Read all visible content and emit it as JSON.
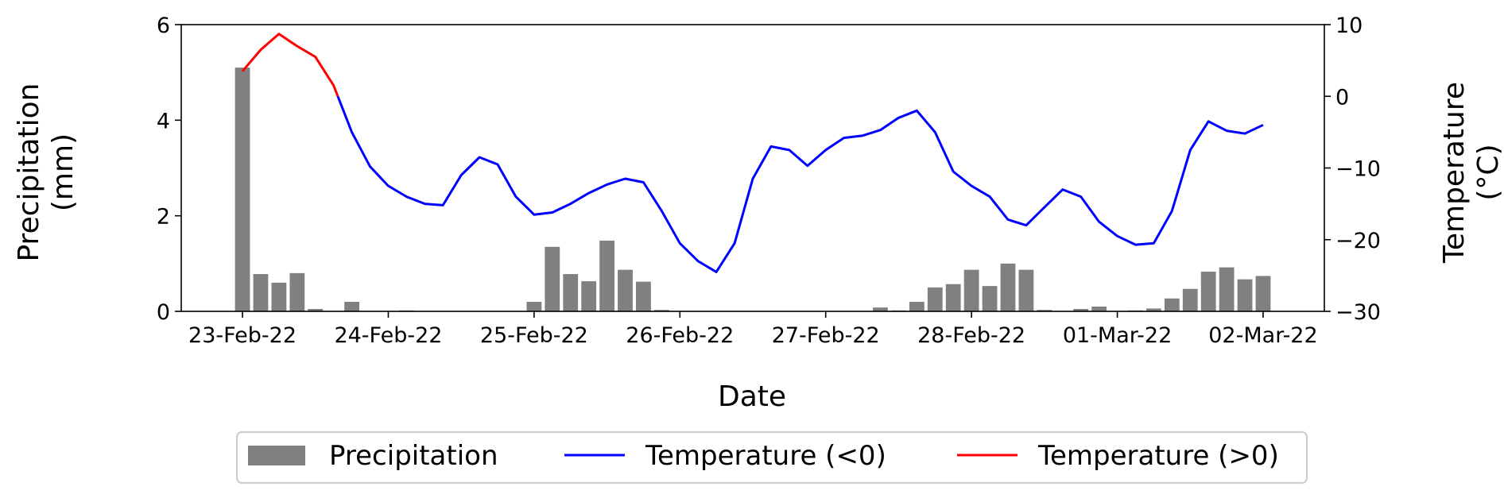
{
  "chart_data": {
    "type": "bar+line",
    "title": "",
    "xlabel": "Date",
    "ylabel_left_lines": [
      "Precipitation",
      "(mm)"
    ],
    "ylabel_right_lines": [
      "Temperature",
      "(°C)"
    ],
    "x_ticks": [
      {
        "day": 0,
        "label": "23-Feb-22"
      },
      {
        "day": 1,
        "label": "24-Feb-22"
      },
      {
        "day": 2,
        "label": "25-Feb-22"
      },
      {
        "day": 3,
        "label": "26-Feb-22"
      },
      {
        "day": 4,
        "label": "27-Feb-22"
      },
      {
        "day": 5,
        "label": "28-Feb-22"
      },
      {
        "day": 6,
        "label": "01-Mar-22"
      },
      {
        "day": 7,
        "label": "02-Mar-22"
      }
    ],
    "xlim": [
      -0.42,
      7.42
    ],
    "ylim_left": [
      0,
      6
    ],
    "ylim_right": [
      -30,
      10
    ],
    "yticks_left": [
      0,
      2,
      4,
      6
    ],
    "yticks_right": [
      -30,
      -20,
      -10,
      0,
      10
    ],
    "ytick_labels_left": [
      "0",
      "2",
      "4",
      "6"
    ],
    "ytick_labels_right": [
      "−30",
      "−20",
      "−10",
      "0",
      "10"
    ],
    "bar_color": "#808080",
    "neg_color": "#0000ff",
    "pos_color": "#ff0000",
    "precipitation": {
      "name": "Precipitation",
      "x": [
        0,
        0.125,
        0.25,
        0.375,
        0.5,
        0.75,
        1.125,
        2.0,
        2.125,
        2.25,
        2.375,
        2.5,
        2.625,
        2.75,
        2.875,
        4.375,
        4.5,
        4.625,
        4.75,
        4.875,
        5.0,
        5.125,
        5.25,
        5.375,
        5.5,
        5.75,
        5.875,
        6.125,
        6.25,
        6.375,
        6.5,
        6.625,
        6.75,
        6.875,
        7.0
      ],
      "values": [
        5.1,
        0.78,
        0.6,
        0.8,
        0.05,
        0.2,
        0.02,
        0.2,
        1.35,
        0.78,
        0.63,
        1.48,
        0.87,
        0.62,
        0.03,
        0.08,
        0.02,
        0.2,
        0.5,
        0.57,
        0.87,
        0.53,
        1.0,
        0.87,
        0.03,
        0.05,
        0.1,
        0.02,
        0.06,
        0.27,
        0.47,
        0.83,
        0.92,
        0.67,
        0.74
      ]
    },
    "temperature": {
      "name_negative": "Temperature (<0)",
      "name_positive": "Temperature (>0)",
      "x": [
        0,
        0.125,
        0.25,
        0.375,
        0.5,
        0.625,
        0.75,
        0.875,
        1.0,
        1.125,
        1.25,
        1.375,
        1.5,
        1.625,
        1.75,
        1.875,
        2.0,
        2.125,
        2.25,
        2.375,
        2.5,
        2.625,
        2.75,
        2.875,
        3.0,
        3.125,
        3.25,
        3.375,
        3.5,
        3.625,
        3.75,
        3.875,
        4.0,
        4.125,
        4.25,
        4.375,
        4.5,
        4.625,
        4.75,
        4.875,
        5.0,
        5.125,
        5.25,
        5.375,
        5.5,
        5.625,
        5.75,
        5.875,
        6.0,
        6.125,
        6.25,
        6.375,
        6.5,
        6.625,
        6.75,
        6.875,
        7.0
      ],
      "values": [
        3.5,
        6.5,
        8.7,
        7.0,
        5.5,
        1.5,
        -5.0,
        -9.8,
        -12.5,
        -14.0,
        -15.0,
        -15.2,
        -11.0,
        -8.5,
        -9.5,
        -14.0,
        -16.5,
        -16.2,
        -15.0,
        -13.5,
        -12.3,
        -11.5,
        -12.0,
        -16.0,
        -20.5,
        -23.0,
        -24.5,
        -20.5,
        -11.5,
        -7.0,
        -7.5,
        -9.7,
        -7.5,
        -5.8,
        -5.5,
        -4.7,
        -3.0,
        -2.0,
        -5.0,
        -10.5,
        -12.5,
        -14.0,
        -17.2,
        -18.0,
        -15.5,
        -13.0,
        -14.0,
        -17.5,
        -19.5,
        -20.7,
        -20.5,
        -16.0,
        -7.5,
        -3.5,
        -4.8,
        -5.2,
        -4.0
      ]
    },
    "legend": {
      "position": "below",
      "labels": [
        "Precipitation",
        "Temperature (<0)",
        "Temperature (>0)"
      ]
    }
  }
}
